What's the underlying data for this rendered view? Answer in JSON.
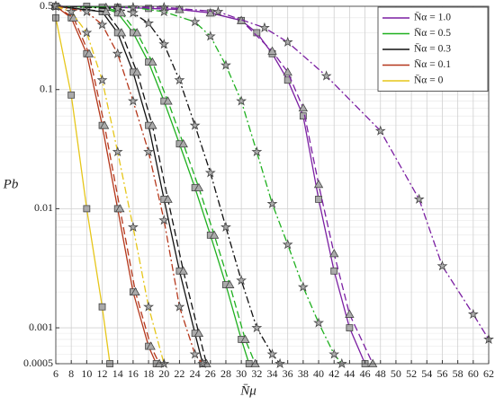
{
  "chart_data": {
    "type": "line",
    "x_label": "N̄μ",
    "y_label": "Pb",
    "log_y": true,
    "grid": true,
    "minor_grid": true,
    "legend": "upper right",
    "xlim": [
      6,
      62
    ],
    "ylim": [
      0.0005,
      0.5
    ],
    "xticks": [
      6,
      8,
      10,
      12,
      14,
      16,
      18,
      20,
      22,
      24,
      26,
      28,
      30,
      32,
      34,
      36,
      38,
      40,
      42,
      44,
      46,
      48,
      50,
      52,
      54,
      56,
      58,
      60,
      62
    ],
    "yticks": [
      0.0005,
      0.001,
      0.01,
      0.1,
      0.5
    ],
    "series": [
      {
        "name": "N̄α = 1.0",
        "color": "#7b1fa2",
        "curves": [
          {
            "style": "solid",
            "marker": "square",
            "x": [
              6,
              10,
              14,
              18,
              22,
              26,
              30,
              32,
              34,
              36,
              38,
              40,
              42,
              44,
              46
            ],
            "values": [
              0.5,
              0.5,
              0.49,
              0.48,
              0.47,
              0.44,
              0.38,
              0.3,
              0.2,
              0.12,
              0.06,
              0.012,
              0.003,
              0.001,
              0.0005
            ]
          },
          {
            "style": "dashed",
            "marker": "triangle",
            "x": [
              6,
              14,
              22,
              26,
              30,
              34,
              36,
              38,
              40,
              42,
              44,
              47
            ],
            "values": [
              0.5,
              0.49,
              0.47,
              0.44,
              0.38,
              0.21,
              0.14,
              0.07,
              0.016,
              0.0042,
              0.0013,
              0.0005
            ]
          },
          {
            "style": "dashdot",
            "marker": "star",
            "x": [
              6,
              20,
              27,
              33,
              36,
              41,
              48,
              53,
              56,
              60,
              62
            ],
            "values": [
              0.5,
              0.49,
              0.45,
              0.33,
              0.25,
              0.13,
              0.045,
              0.012,
              0.0033,
              0.0013,
              0.0008
            ]
          }
        ]
      },
      {
        "name": "N̄α = 0.5",
        "color": "#1fb01f",
        "curves": [
          {
            "style": "solid",
            "marker": "square",
            "x": [
              6,
              12,
              14,
              16,
              18,
              20,
              22,
              24,
              26,
              28,
              30,
              31
            ],
            "values": [
              0.5,
              0.49,
              0.44,
              0.3,
              0.17,
              0.08,
              0.035,
              0.015,
              0.006,
              0.0023,
              0.0008,
              0.0005
            ]
          },
          {
            "style": "dashed",
            "marker": "triangle",
            "x": [
              6,
              12.5,
              14.5,
              16.5,
              18.5,
              20.5,
              22.5,
              24.5,
              26.5,
              28.5,
              30.5,
              31.8
            ],
            "values": [
              0.5,
              0.49,
              0.44,
              0.3,
              0.17,
              0.08,
              0.035,
              0.015,
              0.006,
              0.0023,
              0.0008,
              0.0005
            ]
          },
          {
            "style": "dashdot",
            "marker": "star",
            "x": [
              6,
              16,
              20,
              24,
              26,
              28,
              30,
              32,
              34,
              36,
              38,
              40,
              42,
              43
            ],
            "values": [
              0.5,
              0.49,
              0.45,
              0.37,
              0.28,
              0.16,
              0.08,
              0.03,
              0.011,
              0.005,
              0.0022,
              0.0011,
              0.0006,
              0.0005
            ]
          }
        ]
      },
      {
        "name": "N̄α = 0.3",
        "color": "#111111",
        "curves": [
          {
            "style": "solid",
            "marker": "square",
            "x": [
              6,
              12,
              14,
              16,
              18,
              20,
              22,
              24,
              25
            ],
            "values": [
              0.5,
              0.45,
              0.3,
              0.14,
              0.05,
              0.012,
              0.003,
              0.0009,
              0.0005
            ]
          },
          {
            "style": "dashed",
            "marker": "triangle",
            "x": [
              6,
              12.5,
              14.5,
              16.5,
              18.5,
              20.5,
              22.5,
              24.5,
              25.5
            ],
            "values": [
              0.5,
              0.45,
              0.3,
              0.14,
              0.05,
              0.012,
              0.003,
              0.0009,
              0.0005
            ]
          },
          {
            "style": "dashdot",
            "marker": "star",
            "x": [
              6,
              14,
              16,
              18,
              20,
              22,
              24,
              26,
              28,
              30,
              32,
              34,
              35
            ],
            "values": [
              0.5,
              0.48,
              0.44,
              0.36,
              0.24,
              0.12,
              0.05,
              0.02,
              0.007,
              0.0025,
              0.001,
              0.0006,
              0.0005
            ]
          }
        ]
      },
      {
        "name": "N̄α = 0.1",
        "color": "#b5371b",
        "curves": [
          {
            "style": "solid",
            "marker": "square",
            "x": [
              6,
              8,
              10,
              12,
              14,
              16,
              18,
              19
            ],
            "values": [
              0.5,
              0.4,
              0.2,
              0.05,
              0.01,
              0.002,
              0.0007,
              0.0005
            ]
          },
          {
            "style": "dashed",
            "marker": "triangle",
            "x": [
              6,
              8.3,
              10.3,
              12.3,
              14.3,
              16.3,
              18.3,
              19.4
            ],
            "values": [
              0.5,
              0.4,
              0.2,
              0.05,
              0.01,
              0.002,
              0.0007,
              0.0005
            ]
          },
          {
            "style": "dashdot",
            "marker": "star",
            "x": [
              6,
              10,
              12,
              14,
              16,
              18,
              20,
              22,
              24,
              25
            ],
            "values": [
              0.5,
              0.45,
              0.35,
              0.2,
              0.08,
              0.03,
              0.008,
              0.0015,
              0.0006,
              0.0005
            ]
          }
        ]
      },
      {
        "name": "N̄α = 0",
        "color": "#e6c619",
        "curves": [
          {
            "style": "solid",
            "marker": "square",
            "x": [
              6,
              8,
              10,
              12,
              13
            ],
            "values": [
              0.4,
              0.09,
              0.01,
              0.0015,
              0.0005
            ]
          },
          {
            "style": "dashdot",
            "marker": "star",
            "x": [
              6,
              8,
              10,
              12,
              14,
              16,
              18,
              20
            ],
            "values": [
              0.5,
              0.45,
              0.3,
              0.12,
              0.03,
              0.007,
              0.0015,
              0.0005
            ]
          }
        ]
      }
    ]
  }
}
